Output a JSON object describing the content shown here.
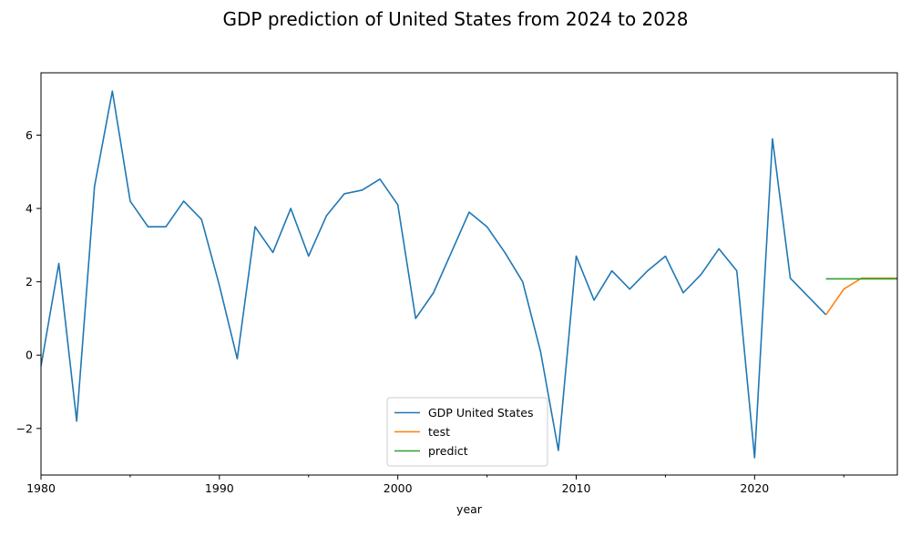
{
  "chart_data": {
    "type": "line",
    "title": "GDP prediction of United States from 2024 to 2028",
    "xlabel": "year",
    "ylabel": "",
    "xlim": [
      1980,
      2028
    ],
    "ylim": [
      -3.27,
      7.7
    ],
    "x_ticks_major": [
      1980,
      1990,
      2000,
      2010,
      2020
    ],
    "x_ticks_minor": [
      1985,
      1995,
      2005,
      2015,
      2025
    ],
    "y_ticks": [
      -2,
      0,
      2,
      4,
      6
    ],
    "grid": false,
    "legend_position": "lower center",
    "series": [
      {
        "name": "GDP United States",
        "color": "#1f77b4",
        "x": [
          1980,
          1981,
          1982,
          1983,
          1984,
          1985,
          1986,
          1987,
          1988,
          1989,
          1990,
          1991,
          1992,
          1993,
          1994,
          1995,
          1996,
          1997,
          1998,
          1999,
          2000,
          2001,
          2002,
          2003,
          2004,
          2005,
          2006,
          2007,
          2008,
          2009,
          2010,
          2011,
          2012,
          2013,
          2014,
          2015,
          2016,
          2017,
          2018,
          2019,
          2020,
          2021,
          2022,
          2023,
          2024
        ],
        "y": [
          -0.3,
          2.5,
          -1.8,
          4.6,
          7.2,
          4.2,
          3.5,
          3.5,
          4.2,
          3.7,
          1.9,
          -0.1,
          3.5,
          2.8,
          4.0,
          2.7,
          3.8,
          4.4,
          4.5,
          4.8,
          4.1,
          1.0,
          1.7,
          2.8,
          3.9,
          3.5,
          2.8,
          2.0,
          0.1,
          -2.6,
          2.7,
          1.5,
          2.3,
          1.8,
          2.3,
          2.7,
          1.7,
          2.2,
          2.9,
          2.3,
          -2.8,
          5.9,
          2.1,
          1.6,
          1.1
        ]
      },
      {
        "name": "test",
        "color": "#ff7f0e",
        "x": [
          2024,
          2025,
          2026,
          2027,
          2028
        ],
        "y": [
          1.1,
          1.8,
          2.1,
          2.1,
          2.1
        ]
      },
      {
        "name": "predict",
        "color": "#2ca02c",
        "x": [
          2024,
          2025,
          2026,
          2027,
          2028
        ],
        "y": [
          2.08,
          2.08,
          2.08,
          2.08,
          2.08
        ]
      }
    ]
  }
}
